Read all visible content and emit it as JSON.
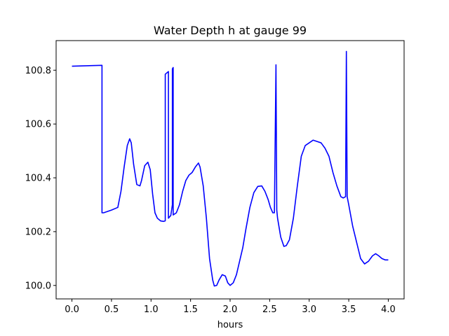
{
  "chart_data": {
    "type": "line",
    "title": "Water Depth h at gauge 99",
    "xlabel": "hours",
    "ylabel": "",
    "xlim": [
      -0.2,
      4.2
    ],
    "ylim": [
      99.95,
      100.91
    ],
    "xticks": [
      0.0,
      0.5,
      1.0,
      1.5,
      2.0,
      2.5,
      3.0,
      3.5,
      4.0
    ],
    "xtick_labels": [
      "0.0",
      "0.5",
      "1.0",
      "1.5",
      "2.0",
      "2.5",
      "3.0",
      "3.5",
      "4.0"
    ],
    "yticks": [
      100.0,
      100.2,
      100.4,
      100.6,
      100.8
    ],
    "ytick_labels": [
      "100.0",
      "100.2",
      "100.4",
      "100.6",
      "100.8"
    ],
    "grid": false,
    "series": [
      {
        "color": "#0000ff",
        "x": [
          0.0,
          0.38,
          0.38,
          0.4,
          0.5,
          0.58,
          0.62,
          0.66,
          0.7,
          0.73,
          0.75,
          0.78,
          0.82,
          0.86,
          0.88,
          0.92,
          0.96,
          0.99,
          1.02,
          1.05,
          1.08,
          1.12,
          1.16,
          1.18,
          1.18,
          1.22,
          1.22,
          1.25,
          1.27,
          1.27,
          1.28,
          1.28,
          1.32,
          1.36,
          1.4,
          1.44,
          1.48,
          1.52,
          1.56,
          1.6,
          1.62,
          1.66,
          1.7,
          1.74,
          1.78,
          1.8,
          1.83,
          1.86,
          1.9,
          1.94,
          1.97,
          2.0,
          2.04,
          2.08,
          2.12,
          2.16,
          2.2,
          2.25,
          2.3,
          2.35,
          2.4,
          2.44,
          2.48,
          2.51,
          2.54,
          2.56,
          2.58,
          2.58,
          2.59,
          2.6,
          2.64,
          2.68,
          2.71,
          2.75,
          2.8,
          2.85,
          2.9,
          2.95,
          3.0,
          3.05,
          3.1,
          3.15,
          3.2,
          3.25,
          3.3,
          3.35,
          3.4,
          3.43,
          3.46,
          3.47,
          3.47,
          3.48,
          3.5,
          3.55,
          3.6,
          3.65,
          3.7,
          3.75,
          3.8,
          3.84,
          3.88,
          3.92,
          3.96,
          4.0
        ],
        "y": [
          100.815,
          100.818,
          100.27,
          100.27,
          100.28,
          100.29,
          100.35,
          100.44,
          100.52,
          100.545,
          100.53,
          100.45,
          100.375,
          100.37,
          100.39,
          100.445,
          100.458,
          100.43,
          100.34,
          100.27,
          100.25,
          100.24,
          100.238,
          100.24,
          100.785,
          100.795,
          100.25,
          100.26,
          100.3,
          100.805,
          100.81,
          100.262,
          100.27,
          100.3,
          100.35,
          100.39,
          100.41,
          100.42,
          100.44,
          100.455,
          100.44,
          100.37,
          100.25,
          100.1,
          100.02,
          99.998,
          100.0,
          100.02,
          100.04,
          100.035,
          100.01,
          100.0,
          100.01,
          100.04,
          100.09,
          100.14,
          100.21,
          100.29,
          100.345,
          100.368,
          100.37,
          100.35,
          100.32,
          100.29,
          100.27,
          100.27,
          100.82,
          100.81,
          100.28,
          100.25,
          100.18,
          100.145,
          100.148,
          100.17,
          100.25,
          100.37,
          100.48,
          100.52,
          100.53,
          100.54,
          100.535,
          100.53,
          100.51,
          100.48,
          100.42,
          100.37,
          100.33,
          100.325,
          100.33,
          100.87,
          100.865,
          100.33,
          100.3,
          100.22,
          100.16,
          100.1,
          100.08,
          100.09,
          100.11,
          100.118,
          100.11,
          100.1,
          100.095,
          100.095
        ]
      }
    ]
  }
}
